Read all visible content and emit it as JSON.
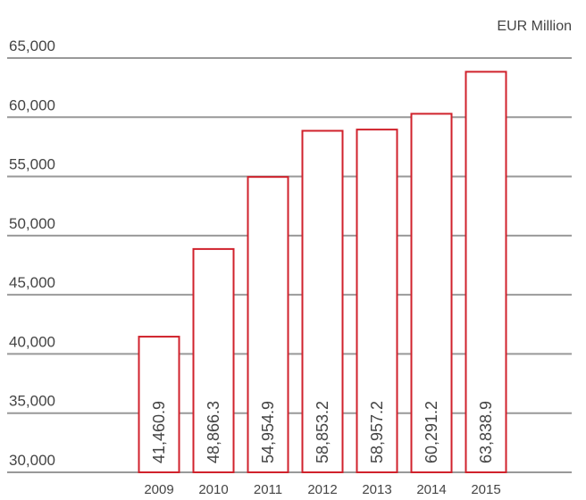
{
  "chart_data": {
    "type": "bar",
    "unit": "EUR Million",
    "categories": [
      "2009",
      "2010",
      "2011",
      "2012",
      "2013",
      "2014",
      "2015"
    ],
    "values": [
      41460.9,
      48866.3,
      54954.9,
      58853.2,
      58957.2,
      60291.2,
      63838.9
    ],
    "value_labels": [
      "41,460.9",
      "48,866.3",
      "54,954.9",
      "58,853.2",
      "58,957.2",
      "60,291.2",
      "63,838.9"
    ],
    "ylim": [
      30000,
      65000
    ],
    "yticks": [
      30000,
      35000,
      40000,
      45000,
      50000,
      55000,
      60000,
      65000
    ],
    "ytick_labels": [
      "30,000",
      "35,000",
      "40,000",
      "45,000",
      "50,000",
      "55,000",
      "60,000",
      "65,000"
    ],
    "grid": true,
    "colors": {
      "bar_border": "#d0222c",
      "bar_fill": "#ffffff",
      "grid": "#999999",
      "text": "#444444"
    }
  }
}
